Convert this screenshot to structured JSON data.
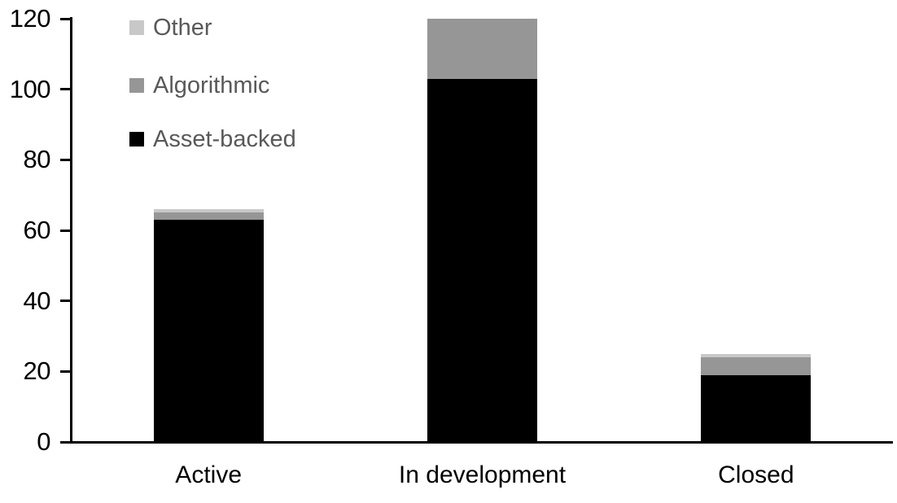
{
  "chart_data": {
    "type": "bar",
    "stacked": true,
    "title": "",
    "categories": [
      "Active",
      "In development",
      "Closed"
    ],
    "series": [
      {
        "name": "Asset-backed",
        "color": "#000000",
        "values": [
          63,
          103,
          19
        ]
      },
      {
        "name": "Algorithmic",
        "color": "#969696",
        "values": [
          2,
          17,
          5
        ]
      },
      {
        "name": "Other",
        "color": "#c8c8c8",
        "values": [
          1,
          0,
          1
        ]
      }
    ],
    "totals": [
      66,
      120,
      25
    ],
    "legend": {
      "position": "top-left",
      "text_color": "#595959",
      "items": [
        {
          "label": "Other",
          "color": "#c8c8c8"
        },
        {
          "label": "Algorithmic",
          "color": "#969696"
        },
        {
          "label": "Asset-backed",
          "color": "#000000"
        }
      ]
    },
    "y_axis": {
      "min": 0,
      "max": 120,
      "tick_interval": 20,
      "tick_labels": [
        "0",
        "20",
        "40",
        "60",
        "80",
        "100",
        "120"
      ]
    },
    "x_axis": {
      "labels": [
        "Active",
        "In development",
        "Closed"
      ]
    },
    "grid": false,
    "background_color": "#ffffff",
    "axis_color": "#000000"
  }
}
